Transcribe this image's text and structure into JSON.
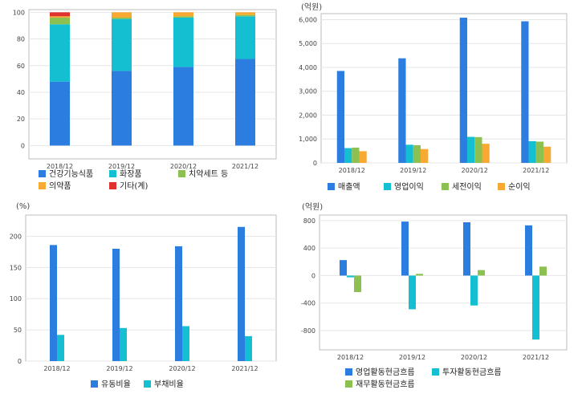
{
  "charts": [
    {
      "type": "bar",
      "stacked": true,
      "categories": [
        "2018/12",
        "2019/12",
        "2020/12",
        "2021/12"
      ],
      "unit": "",
      "yticks": [
        0,
        20,
        40,
        60,
        80,
        100
      ],
      "ylim": [
        -10,
        102
      ],
      "series": [
        {
          "name": "건강기능식품",
          "color": "#2b7de0",
          "values": [
            48,
            56,
            59,
            65
          ]
        },
        {
          "name": "화장품",
          "color": "#13bfd0",
          "values": [
            43,
            39,
            37,
            32
          ]
        },
        {
          "name": "치약세트 등",
          "color": "#8cc152",
          "values": [
            5,
            1,
            1,
            1
          ]
        },
        {
          "name": "의약품",
          "color": "#f7a932",
          "values": [
            1,
            4,
            3,
            2
          ]
        },
        {
          "name": "기타(계)",
          "color": "#e0322c",
          "values": [
            3,
            0,
            0,
            0
          ]
        }
      ]
    },
    {
      "type": "bar",
      "stacked": false,
      "categories": [
        "2018/12",
        "2019/12",
        "2020/12",
        "2021/12"
      ],
      "unit": "(억원)",
      "yticks": [
        0,
        1000,
        2000,
        3000,
        4000,
        5000,
        6000
      ],
      "ytick_labels": [
        "0",
        "1,000",
        "2,000",
        "3,000",
        "4,000",
        "5,000",
        "6,000"
      ],
      "ylim": [
        0,
        6250
      ],
      "series": [
        {
          "name": "매출액",
          "color": "#2b7de0",
          "values": [
            3850,
            4380,
            6080,
            5930
          ]
        },
        {
          "name": "영업이익",
          "color": "#13bfd0",
          "values": [
            620,
            760,
            1090,
            910
          ]
        },
        {
          "name": "세전이익",
          "color": "#8cc152",
          "values": [
            640,
            740,
            1080,
            890
          ]
        },
        {
          "name": "순이익",
          "color": "#f7a932",
          "values": [
            490,
            580,
            800,
            680
          ]
        }
      ]
    },
    {
      "type": "bar",
      "stacked": false,
      "categories": [
        "2018/12",
        "2019/12",
        "2020/12",
        "2021/12"
      ],
      "unit": "(%)",
      "yticks": [
        0,
        50,
        100,
        150,
        200
      ],
      "ylim": [
        0,
        234
      ],
      "series": [
        {
          "name": "유동비율",
          "color": "#2b7de0",
          "values": [
            186,
            180,
            184,
            215
          ]
        },
        {
          "name": "부채비율",
          "color": "#13bfd0",
          "values": [
            42,
            53,
            56,
            40
          ]
        }
      ]
    },
    {
      "type": "bar",
      "stacked": false,
      "categories": [
        "2018/12",
        "2019/12",
        "2020/12",
        "2021/12"
      ],
      "unit": "(억원)",
      "yticks": [
        -800,
        -400,
        0,
        400,
        800
      ],
      "ylim": [
        -1080,
        880
      ],
      "series": [
        {
          "name": "영업활동현금흐름",
          "color": "#2b7de0",
          "values": [
            225,
            785,
            775,
            730
          ]
        },
        {
          "name": "투자활동현금흐름",
          "color": "#13bfd0",
          "values": [
            -25,
            -490,
            -435,
            -930
          ]
        },
        {
          "name": "재무활동현금흐름",
          "color": "#8cc152",
          "values": [
            -240,
            25,
            80,
            130
          ]
        }
      ]
    }
  ]
}
